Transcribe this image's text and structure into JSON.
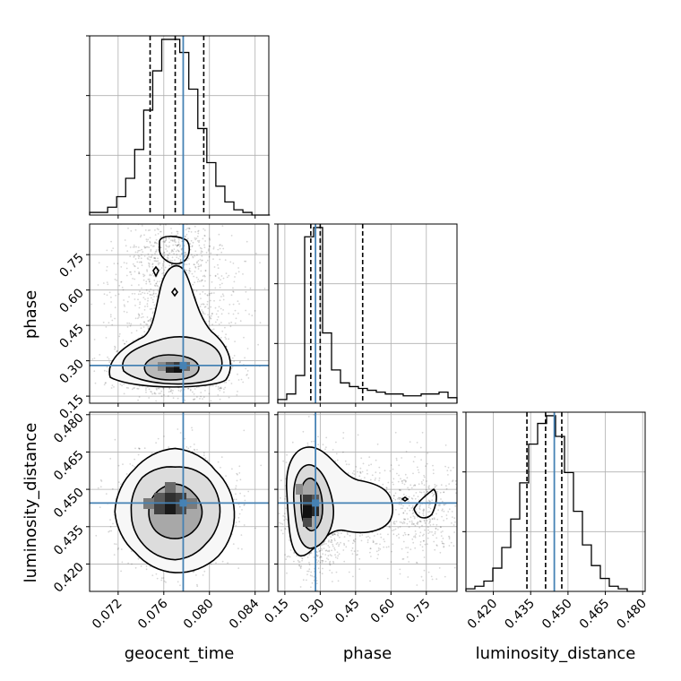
{
  "chart_data": {
    "type": "corner",
    "parameters": [
      {
        "name": "geocent_time",
        "range": [
          0.0695,
          0.0852
        ],
        "ticks": [
          0.072,
          0.076,
          0.08,
          0.084
        ],
        "tick_labels": [
          "0.072",
          "0.076",
          "0.080",
          "0.084"
        ],
        "truth": 0.0777,
        "quantiles": [
          0.0748,
          0.077,
          0.0795
        ],
        "histogram": {
          "start": 0.0695,
          "bin_width": 0.00079,
          "counts": [
            1,
            1,
            3,
            7,
            14,
            25,
            40,
            55,
            67,
            67,
            62,
            48,
            33,
            20,
            11,
            5,
            2,
            1,
            0,
            0
          ]
        }
      },
      {
        "name": "phase",
        "range": [
          0.12,
          0.88
        ],
        "ticks": [
          0.15,
          0.3,
          0.45,
          0.6,
          0.75
        ],
        "tick_labels": [
          "0.15",
          "0.30",
          "0.45",
          "0.60",
          "0.75"
        ],
        "truth": 0.28,
        "quantiles": [
          0.26,
          0.3,
          0.48
        ],
        "histogram": {
          "start": 0.12,
          "bin_width": 0.038,
          "counts": [
            2,
            5,
            15,
            90,
            95,
            38,
            18,
            11,
            9,
            8,
            7,
            6,
            5,
            5,
            4,
            4,
            5,
            5,
            6,
            3
          ]
        }
      },
      {
        "name": "luminosity_distance",
        "range": [
          0.409,
          0.481
        ],
        "ticks": [
          0.42,
          0.435,
          0.45,
          0.465,
          0.48
        ],
        "tick_labels": [
          "0.420",
          "0.435",
          "0.450",
          "0.465",
          "0.480"
        ],
        "truth": 0.4445,
        "quantiles": [
          0.4335,
          0.441,
          0.4475
        ],
        "histogram": {
          "start": 0.409,
          "bin_width": 0.0036,
          "counts": [
            1,
            2,
            4,
            9,
            17,
            28,
            42,
            57,
            65,
            68,
            60,
            46,
            31,
            18,
            10,
            5,
            2,
            1,
            0,
            0
          ]
        }
      }
    ],
    "truth_color": "#4682b4",
    "samples_color": "#000000",
    "grid": true
  }
}
